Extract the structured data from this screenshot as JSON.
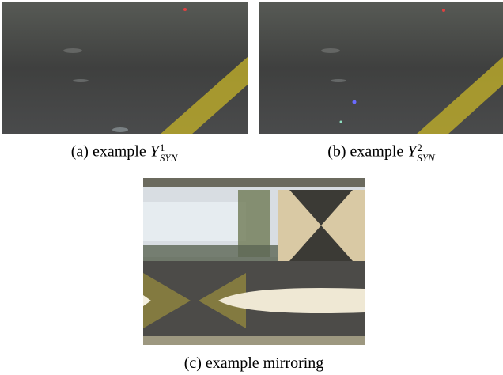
{
  "panels": [
    {
      "label": "(a)",
      "text": "example",
      "symbol": "Y",
      "sup": "1",
      "sub": "SYN"
    },
    {
      "label": "(b)",
      "text": "example",
      "symbol": "Y",
      "sup": "2",
      "sub": "SYN"
    },
    {
      "label": "(c)",
      "text": "example mirroring"
    }
  ]
}
